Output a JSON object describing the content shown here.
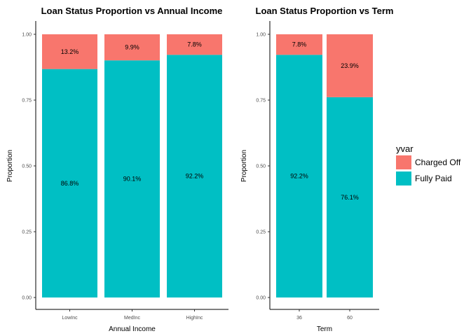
{
  "colors": {
    "fully_paid": "#00BFC4",
    "charged_off": "#F8766D",
    "axis": "#000000"
  },
  "legend": {
    "title": "yvar",
    "items": [
      {
        "label": "Charged Off",
        "color": "#F8766D"
      },
      {
        "label": "Fully Paid",
        "color": "#00BFC4"
      }
    ],
    "placement": "right"
  },
  "chart_data": [
    {
      "type": "bar",
      "stacked": true,
      "title": "Loan Status Proportion vs Annual Income",
      "xlabel": "Annual Income",
      "ylabel": "Proportion",
      "ylim": [
        0,
        1
      ],
      "yticks": [
        "0.00",
        "0.25",
        "0.50",
        "0.75",
        "1.00"
      ],
      "categories": [
        "LowInc",
        "MedInc",
        "HighInc"
      ],
      "series": [
        {
          "name": "Fully Paid",
          "values": [
            0.868,
            0.901,
            0.922
          ],
          "labels": [
            "86.8%",
            "90.1%",
            "92.2%"
          ]
        },
        {
          "name": "Charged Off",
          "values": [
            0.132,
            0.099,
            0.078
          ],
          "labels": [
            "13.2%",
            "9.9%",
            "7.8%"
          ]
        }
      ],
      "grid": false
    },
    {
      "type": "bar",
      "stacked": true,
      "title": "Loan Status Proportion vs Term",
      "xlabel": "Term",
      "ylabel": "Proportion",
      "ylim": [
        0,
        1
      ],
      "yticks": [
        "0.00",
        "0.25",
        "0.50",
        "0.75",
        "1.00"
      ],
      "categories": [
        "36",
        "60"
      ],
      "series": [
        {
          "name": "Fully Paid",
          "values": [
            0.922,
            0.761
          ],
          "labels": [
            "92.2%",
            "76.1%"
          ]
        },
        {
          "name": "Charged Off",
          "values": [
            0.078,
            0.239
          ],
          "labels": [
            "7.8%",
            "23.9%"
          ]
        }
      ],
      "grid": false
    }
  ]
}
